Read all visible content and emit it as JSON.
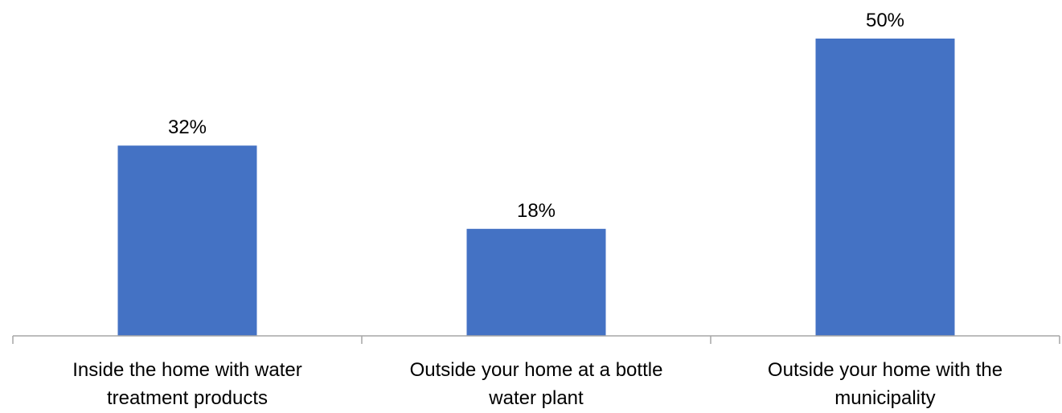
{
  "chart_data": {
    "type": "bar",
    "categories": [
      [
        "Inside the home with water",
        "treatment products"
      ],
      [
        "Outside your home at a bottle",
        "water plant"
      ],
      [
        "Outside your home with the",
        "municipality"
      ]
    ],
    "values": [
      32,
      18,
      50
    ],
    "data_labels": [
      "32%",
      "18%",
      "50%"
    ],
    "unit": "%",
    "title": "",
    "xlabel": "",
    "ylabel": "",
    "ylim": [
      0,
      50
    ],
    "grid": false,
    "legend": "none",
    "bar_color": "#4472C4",
    "axis_color": "#A6A6A6"
  }
}
